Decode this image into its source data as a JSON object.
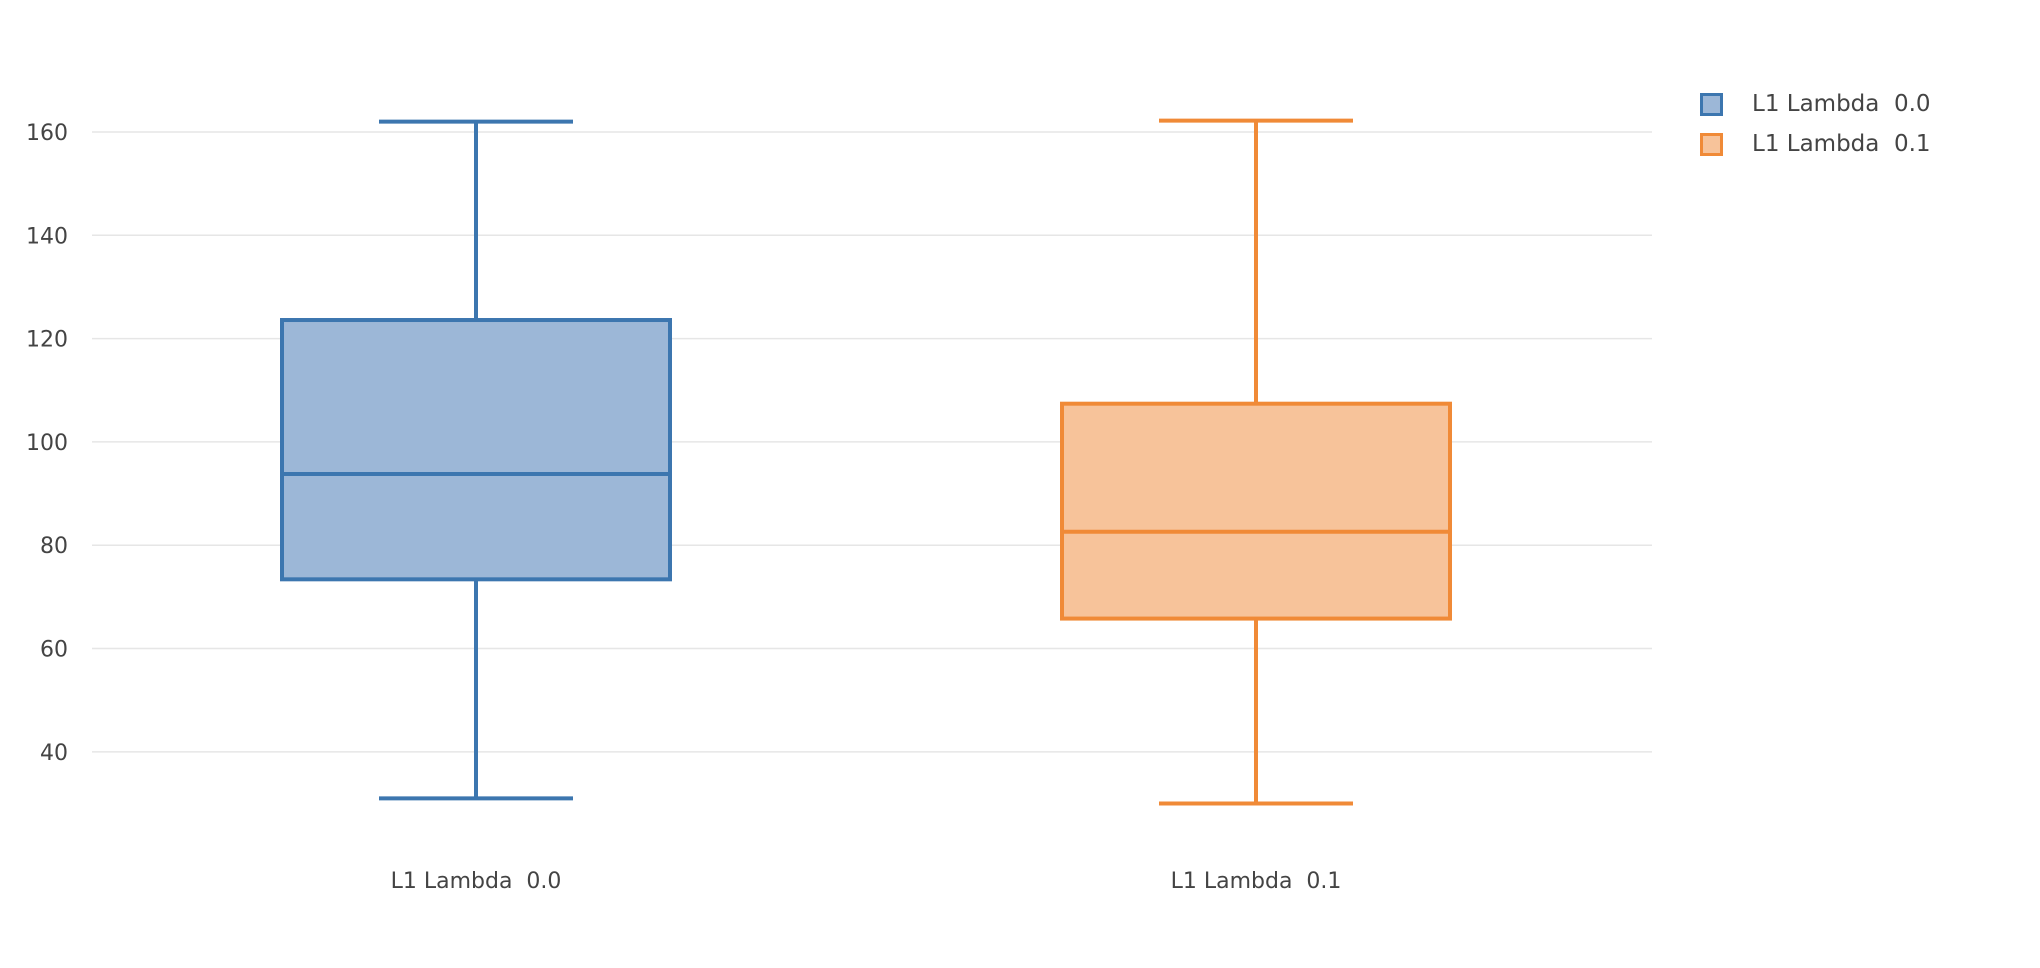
{
  "chart_data": {
    "type": "box",
    "title": "",
    "xlabel": "",
    "ylabel": "",
    "ylim": [
      21,
      172
    ],
    "yticks": [
      40,
      60,
      80,
      100,
      120,
      140,
      160
    ],
    "grid": true,
    "legend_position": "top-right",
    "categories": [
      "L1 Lambda  0.0",
      "L1 Lambda  0.1"
    ],
    "series": [
      {
        "name": "L1 Lambda  0.0",
        "color": "#3c76af",
        "fill": "#9cb7d7",
        "min": 31,
        "q1": 73.4,
        "median": 93.8,
        "q3": 123.6,
        "max": 162
      },
      {
        "name": "L1 Lambda  0.1",
        "color": "#f08a37",
        "fill": "#f7c39a",
        "min": 30,
        "q1": 65.8,
        "median": 82.6,
        "q3": 107.4,
        "max": 162.2
      }
    ]
  }
}
